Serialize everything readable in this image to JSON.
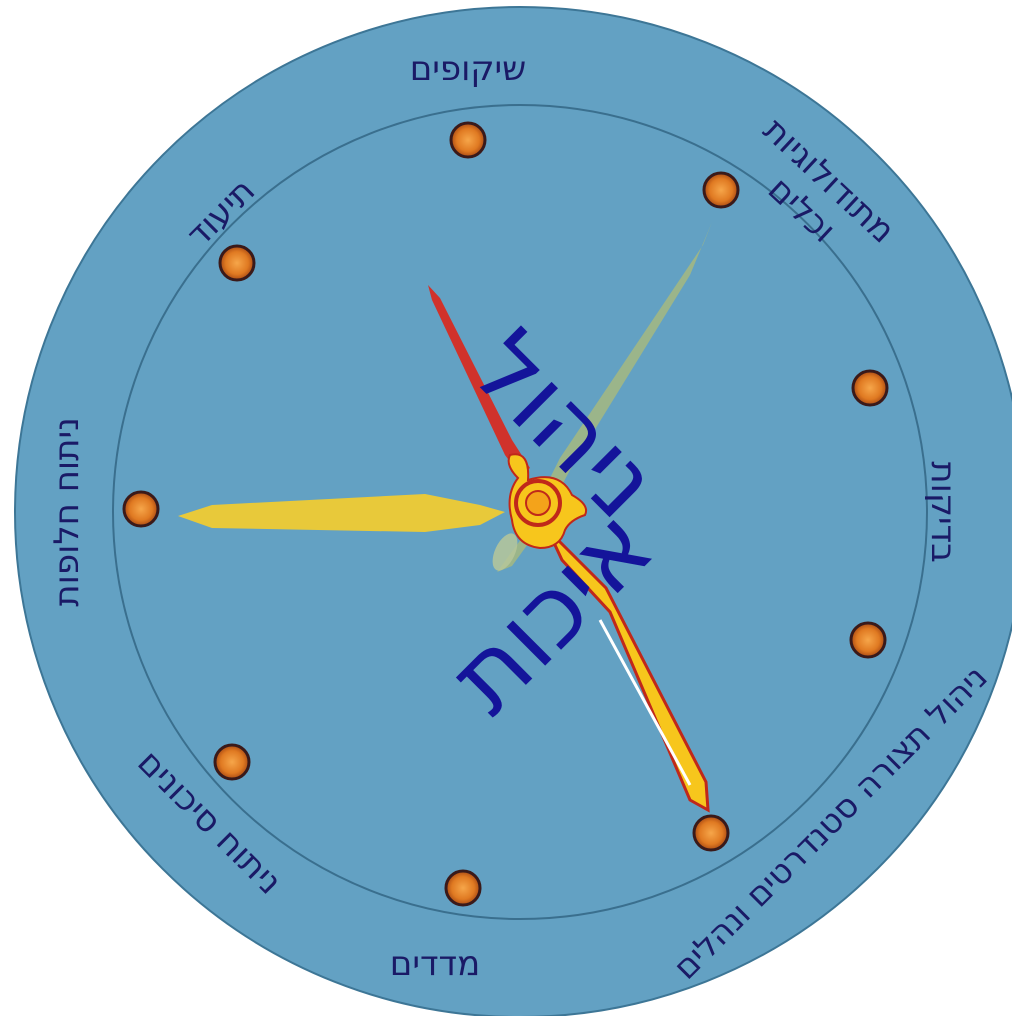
{
  "center": {
    "line1": "ניהול",
    "line2": "איכות"
  },
  "segments": [
    {
      "label": "שיקופים"
    },
    {
      "label": "מתודולוגיות",
      "label2": "וכלים"
    },
    {
      "label": "בדיקות"
    },
    {
      "label": "ניהול תצורה סטנדרטים ונהלים"
    },
    {
      "label": "מדדים"
    },
    {
      "label": "ניתוח סיכונים"
    },
    {
      "label": "ניתוח חלופות"
    },
    {
      "label": "תיעוד"
    }
  ],
  "colors": {
    "dial_fill": "#63a1c3",
    "dial_stroke": "#3d7696",
    "text": "#1a1a66",
    "center_text": "#14149a",
    "hand_red": "#d0322b",
    "hand_green": "#9bb58a",
    "hand_yellow": "#e8c93a",
    "hand_gold": "#f7c61c",
    "marker": "#e07a22"
  }
}
